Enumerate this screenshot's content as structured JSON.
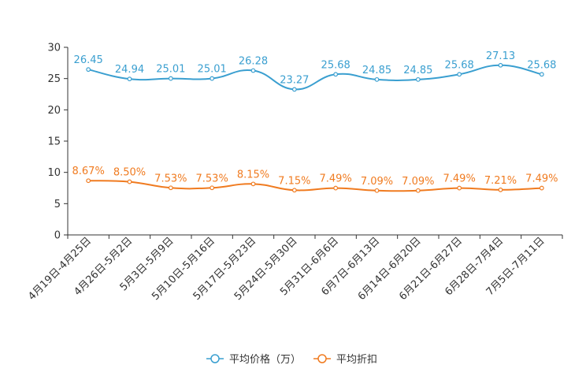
{
  "chart_data": {
    "type": "line",
    "categories": [
      "4月19日-4月25日",
      "4月26日-5月2日",
      "5月3日-5月9日",
      "5月10日-5月16日",
      "5月17日-5月23日",
      "5月24日-5月30日",
      "5月31日-6月6日",
      "6月7日-6月13日",
      "6月14日-6月20日",
      "6月21日-6月27日",
      "6月28日-7月4日",
      "7月5日-7月11日"
    ],
    "ylim": [
      0,
      30
    ],
    "yticks": [
      "0",
      "5",
      "10",
      "15",
      "20",
      "25",
      "30"
    ],
    "series": [
      {
        "name": "平均价格（万）",
        "color": "#3a9fd0",
        "values": [
          26.45,
          24.94,
          25.01,
          25.01,
          26.28,
          23.27,
          25.68,
          24.85,
          24.85,
          25.68,
          27.13,
          25.68
        ],
        "labels": [
          "26.45",
          "24.94",
          "25.01",
          "25.01",
          "26.28",
          "23.27",
          "25.68",
          "24.85",
          "24.85",
          "25.68",
          "27.13",
          "25.68"
        ]
      },
      {
        "name": "平均折扣",
        "color": "#f07b20",
        "values": [
          8.67,
          8.5,
          7.53,
          7.53,
          8.15,
          7.15,
          7.49,
          7.09,
          7.09,
          7.49,
          7.21,
          7.49
        ],
        "labels": [
          "8.67%",
          "8.50%",
          "7.53%",
          "7.53%",
          "8.15%",
          "7.15%",
          "7.49%",
          "7.09%",
          "7.09%",
          "7.49%",
          "7.21%",
          "7.49%"
        ]
      }
    ],
    "legend_position": "bottom-center"
  }
}
